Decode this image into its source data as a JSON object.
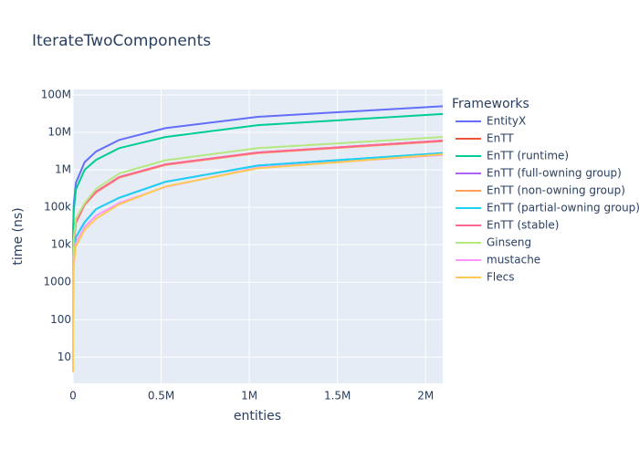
{
  "chart_data": {
    "type": "line",
    "title": "IterateTwoComponents",
    "x_label": "entities",
    "y_label": "time (ns)",
    "legend_title": "Frameworks",
    "log_y": true,
    "grid": true,
    "legend_position": "right",
    "x": [
      1,
      4,
      16,
      64,
      256,
      1024,
      4096,
      16384,
      65536,
      131072,
      262144,
      524288,
      1048576,
      2097152
    ],
    "xlim": [
      0,
      2097152
    ],
    "xticks": [
      0,
      {
        "value": 500000,
        "label": "0.5M"
      },
      {
        "value": 1000000,
        "label": "1M"
      },
      {
        "value": 1500000,
        "label": "1.5M"
      },
      {
        "value": 2000000,
        "label": "2M"
      }
    ],
    "ylim": [
      2,
      140000000
    ],
    "yticks": [
      10,
      100,
      1000,
      {
        "value": 10000,
        "label": "10k"
      },
      {
        "value": 100000,
        "label": "100k"
      },
      {
        "value": 1000000,
        "label": "1M"
      },
      {
        "value": 10000000,
        "label": "10M"
      },
      {
        "value": 100000000,
        "label": "100M"
      }
    ],
    "series": [
      {
        "name": "EntityX",
        "color": "#636efa",
        "values": [
          60,
          150,
          500,
          2000,
          8000,
          30000,
          120000,
          450000,
          1600000,
          3100000,
          6300000,
          13000000,
          26000000,
          50000000
        ]
      },
      {
        "name": "EnTT",
        "color": "#EF553B",
        "values": [
          20,
          40,
          100,
          300,
          1000,
          3500,
          12000,
          40000,
          120000,
          260000,
          640000,
          1400000,
          2900000,
          6000000
        ]
      },
      {
        "name": "EnTT (runtime)",
        "color": "#00cc96",
        "values": [
          40,
          100,
          350,
          1300,
          5000,
          20000,
          80000,
          300000,
          1000000,
          1850000,
          3800000,
          7500000,
          15600000,
          31000000
        ]
      },
      {
        "name": "EnTT (full-owning group)",
        "color": "#ab63fa",
        "values": [
          8,
          15,
          40,
          120,
          400,
          1400,
          5000,
          16000,
          40000,
          90000,
          180000,
          480000,
          1300000,
          2800000
        ]
      },
      {
        "name": "EnTT (non-owning group)",
        "color": "#FFA15A",
        "values": [
          18,
          35,
          90,
          280,
          900,
          3200,
          11000,
          38000,
          115000,
          250000,
          620000,
          1350000,
          2800000,
          5800000
        ]
      },
      {
        "name": "EnTT (partial-owning group)",
        "color": "#19d3f3",
        "values": [
          6,
          14,
          40,
          120,
          400,
          1400,
          5000,
          16000,
          40000,
          90000,
          180000,
          480000,
          1300000,
          2800000
        ]
      },
      {
        "name": "EnTT (stable)",
        "color": "#FF6692",
        "values": [
          20,
          40,
          100,
          300,
          1000,
          3500,
          12000,
          40000,
          120000,
          260000,
          640000,
          1400000,
          2900000,
          6000000
        ]
      },
      {
        "name": "Ginseng",
        "color": "#B6E880",
        "values": [
          25,
          50,
          130,
          400,
          1300,
          4500,
          15000,
          50000,
          130000,
          310000,
          800000,
          1800000,
          3800000,
          7500000
        ]
      },
      {
        "name": "mustache",
        "color": "#FF97FF",
        "values": [
          5,
          10,
          30,
          90,
          300,
          1000,
          3500,
          11000,
          30000,
          60000,
          130000,
          350000,
          1150000,
          2500000
        ]
      },
      {
        "name": "Flecs",
        "color": "#FECB52",
        "values": [
          4,
          9,
          25,
          80,
          250,
          900,
          3000,
          9000,
          25000,
          50000,
          120000,
          360000,
          1100000,
          2600000
        ]
      }
    ]
  }
}
